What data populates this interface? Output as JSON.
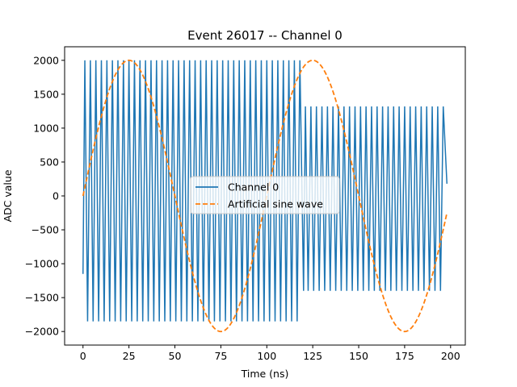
{
  "chart_data": {
    "type": "line",
    "title": "Event 26017 -- Channel 0",
    "xlabel": "Time (ns)",
    "ylabel": "ADC value",
    "xlim": [
      -10,
      208
    ],
    "ylim": [
      -2200,
      2200
    ],
    "xticks": [
      0,
      25,
      50,
      75,
      100,
      125,
      150,
      175,
      200
    ],
    "yticks": [
      -2000,
      -1500,
      -1000,
      -500,
      0,
      500,
      1000,
      1500,
      2000
    ],
    "grid": false,
    "legend_position": "center",
    "colors": {
      "channel": "#1f77b4",
      "sine": "#ff7f0e"
    },
    "series": [
      {
        "name": "Channel 0",
        "style": "solid",
        "segments": [
          {
            "x_start": 0,
            "x_end": 118,
            "high": 2000,
            "low": -1850,
            "base": -1150,
            "period": 3.0
          },
          {
            "x_start": 120,
            "x_end": 197,
            "high": 1320,
            "low": -1400,
            "base": -1400,
            "period": 3.0
          }
        ],
        "end_point": [
          198,
          180
        ]
      },
      {
        "name": "Artificial sine wave",
        "style": "dashed",
        "amplitude": 2000,
        "period": 100,
        "x_start": 0,
        "x_end": 198
      }
    ]
  }
}
